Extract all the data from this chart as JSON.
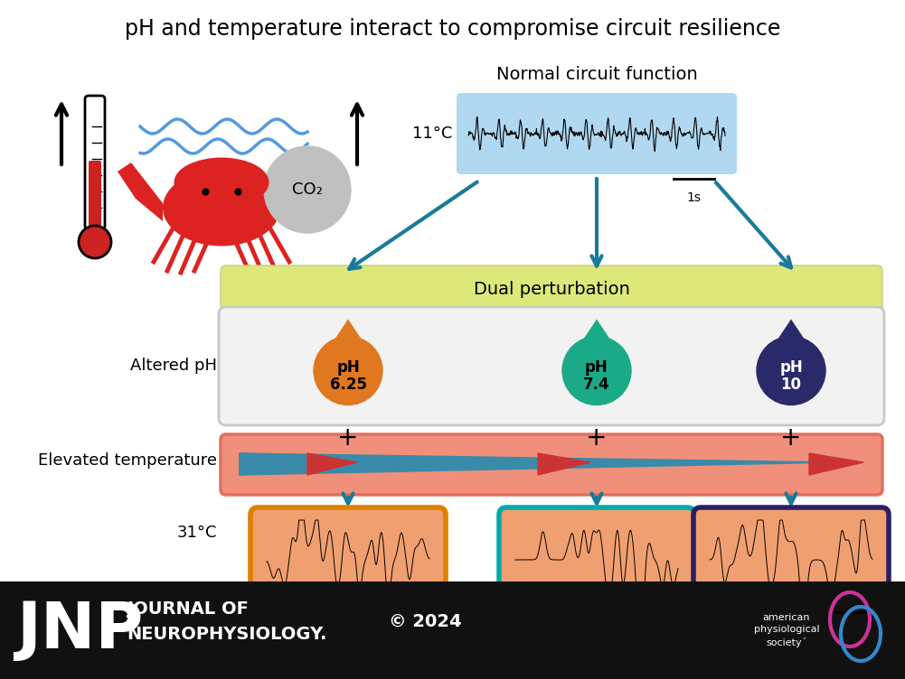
{
  "title": "pH and temperature interact to compromise circuit resilience",
  "title_fontsize": 17,
  "bg_color": "#ffffff",
  "footer_bg": "#111111",
  "dual_perturb_text": "Dual perturbation",
  "dual_perturb_bg": "#dde87a",
  "altered_ph_text": "Altered pH",
  "elevated_temp_text": "Elevated temperature",
  "normal_function_text": "Normal circuit function",
  "temp_11": "11°C",
  "temp_31": "31°C",
  "ph_values": [
    "pH\n6.25",
    "pH\n7.4",
    "pH\n10"
  ],
  "ph_colors": [
    "#e07820",
    "#1aaa88",
    "#2a2a6a"
  ],
  "ph_text_colors": [
    "#000000",
    "#000000",
    "#ffffff"
  ],
  "result_box_stroke": [
    "#e08000",
    "#00aaaa",
    "#2a2060"
  ],
  "result_box_fill": "#f0a070",
  "arrow_color": "#1a7a9a",
  "plus_color": "#000000",
  "label_fontsize": 13,
  "small_fontsize": 12,
  "signal_1s_text": "1s",
  "signal_bg_top": "#b0d8f0",
  "signal_bg_bottom": "#f0a070",
  "temp_bar_fill": "#f0907a",
  "temp_bar_stroke": "#e07060",
  "tri_teal": "#3a8aaa",
  "tri_red": "#cc3333"
}
